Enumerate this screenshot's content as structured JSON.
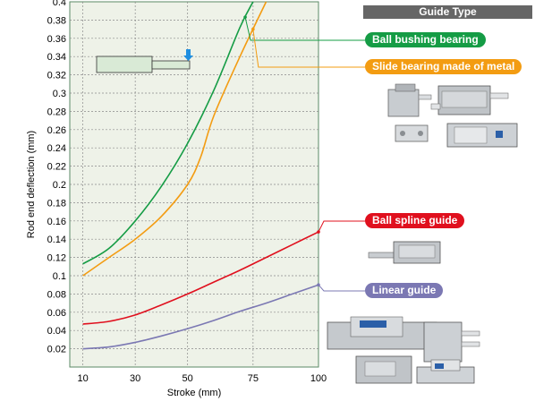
{
  "header": {
    "guide_type_label": "Guide Type"
  },
  "legend": [
    {
      "label": "Ball bushing bearing",
      "color": "#159c45"
    },
    {
      "label": "Slide bearing made of metal",
      "color": "#f39c12"
    },
    {
      "label": "Ball spline guide",
      "color": "#e0101e"
    },
    {
      "label": "Linear guide",
      "color": "#7b78b3"
    }
  ],
  "colors": {
    "plot_bg": "#eef2e8",
    "plot_border": "#5b8a66",
    "grid": "#8a8a8a"
  },
  "chart_data": {
    "type": "line",
    "xlabel": "Stroke (mm)",
    "ylabel": "Rod end deflection (mm)",
    "xlim": [
      5,
      100
    ],
    "ylim": [
      0,
      0.4
    ],
    "xticks": [
      10,
      30,
      50,
      75,
      100
    ],
    "yticks": [
      0.02,
      0.04,
      0.06,
      0.08,
      0.1,
      0.12,
      0.14,
      0.16,
      0.18,
      0.2,
      0.22,
      0.24,
      0.26,
      0.28,
      0.3,
      0.32,
      0.34,
      0.36,
      0.38,
      0.4
    ],
    "grid": true,
    "series": [
      {
        "name": "Ball bushing bearing",
        "color": "#159c45",
        "x": [
          10,
          20,
          30,
          40,
          50,
          60,
          70,
          75
        ],
        "y": [
          0.113,
          0.13,
          0.16,
          0.198,
          0.245,
          0.303,
          0.372,
          0.4
        ]
      },
      {
        "name": "Slide bearing made of metal",
        "color": "#f39c12",
        "x": [
          10,
          20,
          30,
          40,
          50,
          55,
          60,
          70,
          80
        ],
        "y": [
          0.1,
          0.12,
          0.14,
          0.165,
          0.2,
          0.23,
          0.275,
          0.34,
          0.4
        ]
      },
      {
        "name": "Ball spline guide",
        "color": "#e0101e",
        "x": [
          10,
          20,
          30,
          40,
          50,
          60,
          70,
          80,
          90,
          100
        ],
        "y": [
          0.047,
          0.05,
          0.057,
          0.068,
          0.08,
          0.093,
          0.106,
          0.12,
          0.134,
          0.148
        ]
      },
      {
        "name": "Linear guide",
        "color": "#7b78b3",
        "x": [
          10,
          20,
          30,
          40,
          50,
          60,
          70,
          80,
          90,
          100
        ],
        "y": [
          0.02,
          0.022,
          0.027,
          0.034,
          0.042,
          0.051,
          0.061,
          0.07,
          0.08,
          0.09
        ]
      }
    ]
  }
}
